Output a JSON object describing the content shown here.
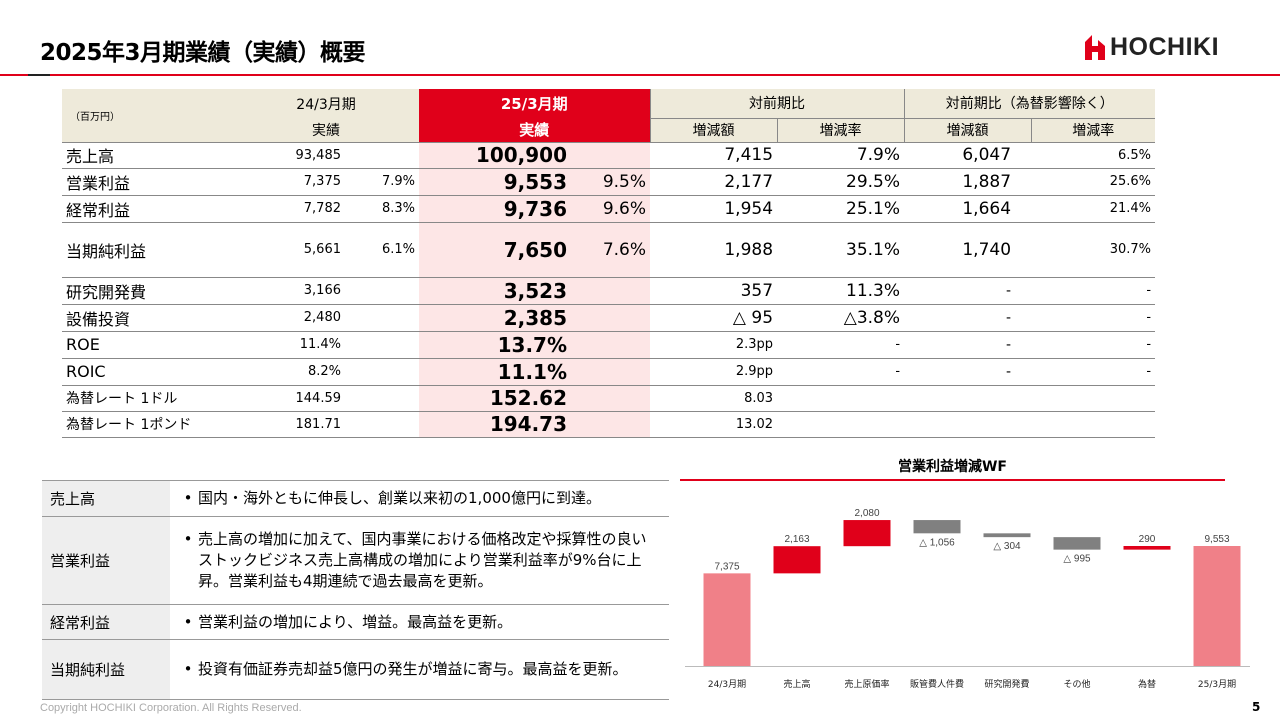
{
  "header": {
    "title": "2025年3月期業績（実績）概要",
    "logo_text": "HOCHIKI",
    "brand_color": "#e0001a"
  },
  "table": {
    "unit": "（百万円）",
    "col_prev_period": "24/3月期",
    "col_prev_label": "実績",
    "col_curr_period": "25/3月期",
    "col_curr_label": "実績",
    "col_yoy": "対前期比",
    "col_yoy_fx": "対前期比（為替影響除く）",
    "sub_diff": "増減額",
    "sub_rate": "増減率",
    "sub_diff2": "増減額",
    "sub_rate2": "増減率",
    "rows": [
      {
        "label": "売上高",
        "prev": "93,485",
        "prev_pct": "",
        "curr": "100,900",
        "curr_pct": "",
        "diff": "7,415",
        "rate": "7.9%",
        "diff2": "6,047",
        "rate2": "6.5%"
      },
      {
        "label": "営業利益",
        "prev": "7,375",
        "prev_pct": "7.9%",
        "curr": "9,553",
        "curr_pct": "9.5%",
        "diff": "2,177",
        "rate": "29.5%",
        "diff2": "1,887",
        "rate2": "25.6%"
      },
      {
        "label": "経常利益",
        "prev": "7,782",
        "prev_pct": "8.3%",
        "curr": "9,736",
        "curr_pct": "9.6%",
        "diff": "1,954",
        "rate": "25.1%",
        "diff2": "1,664",
        "rate2": "21.4%"
      },
      {
        "label": "当期純利益",
        "prev": "5,661",
        "prev_pct": "6.1%",
        "curr": "7,650",
        "curr_pct": "7.6%",
        "diff": "1,988",
        "rate": "35.1%",
        "diff2": "1,740",
        "rate2": "30.7%"
      },
      {
        "label": "研究開発費",
        "prev": "3,166",
        "prev_pct": "",
        "curr": "3,523",
        "curr_pct": "",
        "diff": "357",
        "rate": "11.3%",
        "diff2": "-",
        "rate2": "-"
      },
      {
        "label": "設備投資",
        "prev": "2,480",
        "prev_pct": "",
        "curr": "2,385",
        "curr_pct": "",
        "diff": "△ 95",
        "rate": "△3.8%",
        "diff2": "-",
        "rate2": "-"
      },
      {
        "label": "ROE",
        "prev": "11.4%",
        "prev_pct": "",
        "curr": "13.7%",
        "curr_pct": "",
        "diff": "2.3pp",
        "rate": "-",
        "diff2": "-",
        "rate2": "-"
      },
      {
        "label": "ROIC",
        "prev": "8.2%",
        "prev_pct": "",
        "curr": "11.1%",
        "curr_pct": "",
        "diff": "2.9pp",
        "rate": "-",
        "diff2": "-",
        "rate2": "-"
      },
      {
        "label": "為替レート 1ドル",
        "prev": "144.59",
        "prev_pct": "",
        "curr": "152.62",
        "curr_pct": "",
        "diff": "8.03",
        "rate": "",
        "diff2": "",
        "rate2": ""
      },
      {
        "label": "為替レート 1ポンド",
        "prev": "181.71",
        "prev_pct": "",
        "curr": "194.73",
        "curr_pct": "",
        "diff": "13.02",
        "rate": "",
        "diff2": "",
        "rate2": ""
      }
    ]
  },
  "summary": [
    {
      "key": "売上高",
      "text": "国内・海外ともに伸長し、創業以来初の1,000億円に到達。"
    },
    {
      "key": "営業利益",
      "text": "売上高の増加に加えて、国内事業における価格改定や採算性の良いストックビジネス売上高構成の増加により営業利益率が9%台に上昇。営業利益も4期連続で過去最高を更新。"
    },
    {
      "key": "経常利益",
      "text": "営業利益の増加により、増益。最高益を更新。"
    },
    {
      "key": "当期純利益",
      "text": "投資有価証券売却益5億円の発生が増益に寄与。最高益を更新。"
    }
  ],
  "chart_data": {
    "type": "bar",
    "subtype": "waterfall",
    "title": "営業利益増減WF",
    "categories": [
      "24/3月期",
      "売上高",
      "売上原価率",
      "販管費人件費",
      "研究開発費",
      "その他",
      "為替",
      "25/3月期"
    ],
    "values": [
      7375,
      2163,
      2080,
      -1056,
      -304,
      -995,
      290,
      9553
    ],
    "kinds": [
      "total",
      "increase",
      "increase",
      "decrease",
      "decrease",
      "decrease",
      "increase",
      "total"
    ],
    "data_labels": [
      "7,375",
      "2,163",
      "2,080",
      "△ 1,056",
      "△ 304",
      "△ 995",
      "290",
      "9,553"
    ],
    "colors": {
      "total": "#f08088",
      "increase": "#e0001a",
      "decrease": "#808080"
    },
    "grid": false
  },
  "footer": {
    "copyright": "Copyright HOCHIKI Corporation. All Rights Reserved.",
    "page_number": "5"
  }
}
